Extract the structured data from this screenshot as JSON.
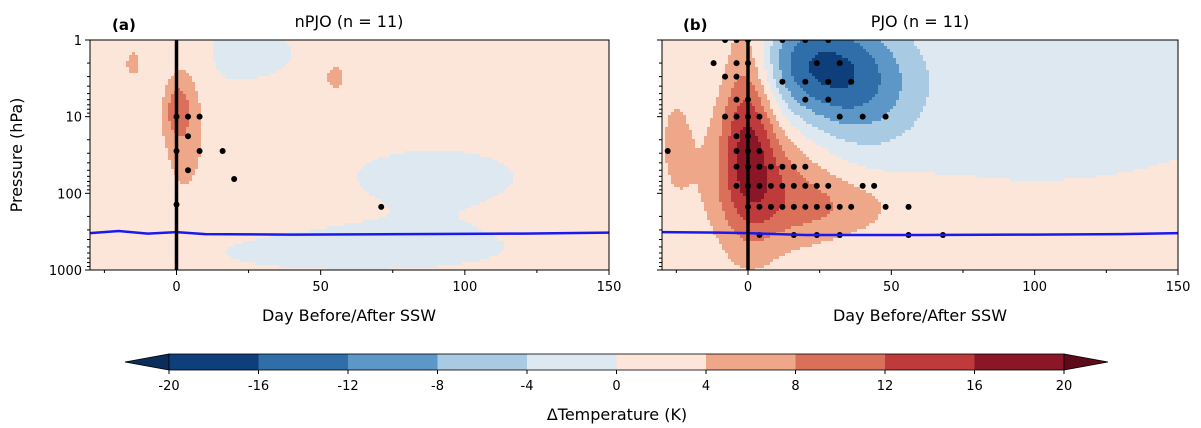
{
  "chart_data": [
    {
      "type": "heatmap",
      "panel_label": "(a)",
      "title": "nPJO (n = 11)",
      "xlabel": "Day Before/After SSW",
      "ylabel": "Pressure (hPa)",
      "xlim": [
        -30,
        150
      ],
      "ylim": [
        1000,
        1
      ],
      "yscale": "log",
      "xticks": [
        "0",
        "50",
        "100",
        "150"
      ],
      "yticks": [
        "1",
        "10",
        "100",
        "1000"
      ],
      "background_anomaly_K": 2,
      "anomaly_blobs": [
        {
          "day": 3,
          "hPa": 10,
          "day_width": 5,
          "log_p_width": 0.7,
          "peak_K": 5
        },
        {
          "day": 0,
          "hPa": 8,
          "day_width": 3,
          "log_p_width": 0.25,
          "peak_K": 6
        },
        {
          "day": -15,
          "hPa": 2,
          "day_width": 3,
          "log_p_width": 0.2,
          "peak_K": 4
        },
        {
          "day": 20,
          "hPa": 1.5,
          "day_width": 30,
          "log_p_width": 0.5,
          "peak_K": -2.5
        },
        {
          "day": 90,
          "hPa": 60,
          "day_width": 40,
          "log_p_width": 0.5,
          "peak_K": -2.5
        },
        {
          "day": 60,
          "hPa": 600,
          "day_width": 60,
          "log_p_width": 0.3,
          "peak_K": -2.5
        },
        {
          "day": 55,
          "hPa": 3,
          "day_width": 3,
          "log_p_width": 0.15,
          "peak_K": 4.5
        }
      ],
      "significance_points": [
        {
          "day": 0,
          "hPa": 10
        },
        {
          "day": 4,
          "hPa": 10
        },
        {
          "day": 8,
          "hPa": 10
        },
        {
          "day": 4,
          "hPa": 18
        },
        {
          "day": 0,
          "hPa": 28
        },
        {
          "day": 8,
          "hPa": 28
        },
        {
          "day": 4,
          "hPa": 50
        },
        {
          "day": 16,
          "hPa": 28
        },
        {
          "day": 20,
          "hPa": 65
        },
        {
          "day": 71,
          "hPa": 150
        },
        {
          "day": 0,
          "hPa": 140
        }
      ],
      "tropopause": [
        {
          "day": -30,
          "hPa": 330
        },
        {
          "day": -20,
          "hPa": 310
        },
        {
          "day": -10,
          "hPa": 335
        },
        {
          "day": 0,
          "hPa": 320
        },
        {
          "day": 10,
          "hPa": 340
        },
        {
          "day": 40,
          "hPa": 345
        },
        {
          "day": 80,
          "hPa": 340
        },
        {
          "day": 120,
          "hPa": 335
        },
        {
          "day": 150,
          "hPa": 325
        }
      ],
      "ssw_day": 0
    },
    {
      "type": "heatmap",
      "panel_label": "(b)",
      "title": "PJO (n = 11)",
      "xlabel": "Day Before/After SSW",
      "ylabel": "",
      "xlim": [
        -30,
        150
      ],
      "ylim": [
        1000,
        1
      ],
      "yscale": "log",
      "xticks": [
        "0",
        "50",
        "100",
        "150"
      ],
      "yticks": [],
      "background_anomaly_K": 1,
      "anomaly_blobs": [
        {
          "day": 0,
          "hPa": 10,
          "day_width": 7,
          "log_p_width": 1.0,
          "peak_K": 14
        },
        {
          "day": 8,
          "hPa": 70,
          "day_width": 15,
          "log_p_width": 0.6,
          "peak_K": 8
        },
        {
          "day": 30,
          "hPa": 150,
          "day_width": 18,
          "log_p_width": 0.3,
          "peak_K": 5
        },
        {
          "day": 25,
          "hPa": 2,
          "day_width": 18,
          "log_p_width": 0.5,
          "peak_K": -15
        },
        {
          "day": 40,
          "hPa": 7,
          "day_width": 15,
          "log_p_width": 0.5,
          "peak_K": -6
        },
        {
          "day": 100,
          "hPa": 3,
          "day_width": 60,
          "log_p_width": 1.0,
          "peak_K": -2.5
        },
        {
          "day": -25,
          "hPa": 20,
          "day_width": 5,
          "log_p_width": 0.6,
          "peak_K": 4
        }
      ],
      "significance_points": [
        {
          "day": -8,
          "hPa": 1
        },
        {
          "day": -4,
          "hPa": 1
        },
        {
          "day": 0,
          "hPa": 1
        },
        {
          "day": 12,
          "hPa": 1
        },
        {
          "day": 20,
          "hPa": 1
        },
        {
          "day": 28,
          "hPa": 1
        },
        {
          "day": -12,
          "hPa": 2
        },
        {
          "day": -4,
          "hPa": 2
        },
        {
          "day": 0,
          "hPa": 2
        },
        {
          "day": 24,
          "hPa": 2
        },
        {
          "day": 32,
          "hPa": 2
        },
        {
          "day": -8,
          "hPa": 3
        },
        {
          "day": -4,
          "hPa": 3
        },
        {
          "day": 12,
          "hPa": 3.5
        },
        {
          "day": 20,
          "hPa": 3.5
        },
        {
          "day": 28,
          "hPa": 3.5
        },
        {
          "day": 36,
          "hPa": 3.5
        },
        {
          "day": -4,
          "hPa": 6
        },
        {
          "day": 0,
          "hPa": 6
        },
        {
          "day": 20,
          "hPa": 6
        },
        {
          "day": 28,
          "hPa": 6
        },
        {
          "day": -8,
          "hPa": 10
        },
        {
          "day": -4,
          "hPa": 10
        },
        {
          "day": 0,
          "hPa": 10
        },
        {
          "day": 4,
          "hPa": 10
        },
        {
          "day": 32,
          "hPa": 10
        },
        {
          "day": 40,
          "hPa": 10
        },
        {
          "day": 48,
          "hPa": 10
        },
        {
          "day": -4,
          "hPa": 18
        },
        {
          "day": 0,
          "hPa": 18
        },
        {
          "day": -28,
          "hPa": 28
        },
        {
          "day": -4,
          "hPa": 28
        },
        {
          "day": 0,
          "hPa": 28
        },
        {
          "day": 4,
          "hPa": 28
        },
        {
          "day": -4,
          "hPa": 45
        },
        {
          "day": 0,
          "hPa": 45
        },
        {
          "day": 4,
          "hPa": 45
        },
        {
          "day": 8,
          "hPa": 45
        },
        {
          "day": 12,
          "hPa": 45
        },
        {
          "day": 16,
          "hPa": 45
        },
        {
          "day": 20,
          "hPa": 45
        },
        {
          "day": -4,
          "hPa": 80
        },
        {
          "day": 0,
          "hPa": 80
        },
        {
          "day": 4,
          "hPa": 80
        },
        {
          "day": 8,
          "hPa": 80
        },
        {
          "day": 12,
          "hPa": 80
        },
        {
          "day": 16,
          "hPa": 80
        },
        {
          "day": 20,
          "hPa": 80
        },
        {
          "day": 24,
          "hPa": 80
        },
        {
          "day": 28,
          "hPa": 80
        },
        {
          "day": 40,
          "hPa": 80
        },
        {
          "day": 44,
          "hPa": 80
        },
        {
          "day": 0,
          "hPa": 150
        },
        {
          "day": 4,
          "hPa": 150
        },
        {
          "day": 8,
          "hPa": 150
        },
        {
          "day": 12,
          "hPa": 150
        },
        {
          "day": 16,
          "hPa": 150
        },
        {
          "day": 20,
          "hPa": 150
        },
        {
          "day": 24,
          "hPa": 150
        },
        {
          "day": 28,
          "hPa": 150
        },
        {
          "day": 32,
          "hPa": 150
        },
        {
          "day": 36,
          "hPa": 150
        },
        {
          "day": 48,
          "hPa": 150
        },
        {
          "day": 56,
          "hPa": 150
        },
        {
          "day": 4,
          "hPa": 350
        },
        {
          "day": 16,
          "hPa": 350
        },
        {
          "day": 24,
          "hPa": 350
        },
        {
          "day": 32,
          "hPa": 350
        },
        {
          "day": 56,
          "hPa": 350
        },
        {
          "day": 68,
          "hPa": 350
        }
      ],
      "tropopause": [
        {
          "day": -30,
          "hPa": 320
        },
        {
          "day": -10,
          "hPa": 325
        },
        {
          "day": 0,
          "hPa": 330
        },
        {
          "day": 20,
          "hPa": 350
        },
        {
          "day": 60,
          "hPa": 350
        },
        {
          "day": 100,
          "hPa": 345
        },
        {
          "day": 130,
          "hPa": 340
        },
        {
          "day": 150,
          "hPa": 330
        }
      ],
      "ssw_day": 0
    }
  ],
  "colorbar": {
    "label": "ΔTemperature (K)",
    "ticks": [
      "-20",
      "-16",
      "-12",
      "-8",
      "-4",
      "0",
      "4",
      "8",
      "12",
      "16",
      "20"
    ],
    "levels": [
      -20,
      -16,
      -12,
      -8,
      -4,
      0,
      4,
      8,
      12,
      16,
      20
    ],
    "colors": [
      "#0f3f7a",
      "#2f6ea8",
      "#5d97c8",
      "#a8cbe3",
      "#dde8f1",
      "#fce6da",
      "#eea889",
      "#da6f5a",
      "#bf3b3b",
      "#8a1626"
    ],
    "under_color": "#0b2d5c",
    "over_color": "#5d0b1a"
  },
  "style": {
    "tropopause_color": "#1a1aee",
    "ssw_line_color": "#000000",
    "dot_color": "#000000"
  }
}
